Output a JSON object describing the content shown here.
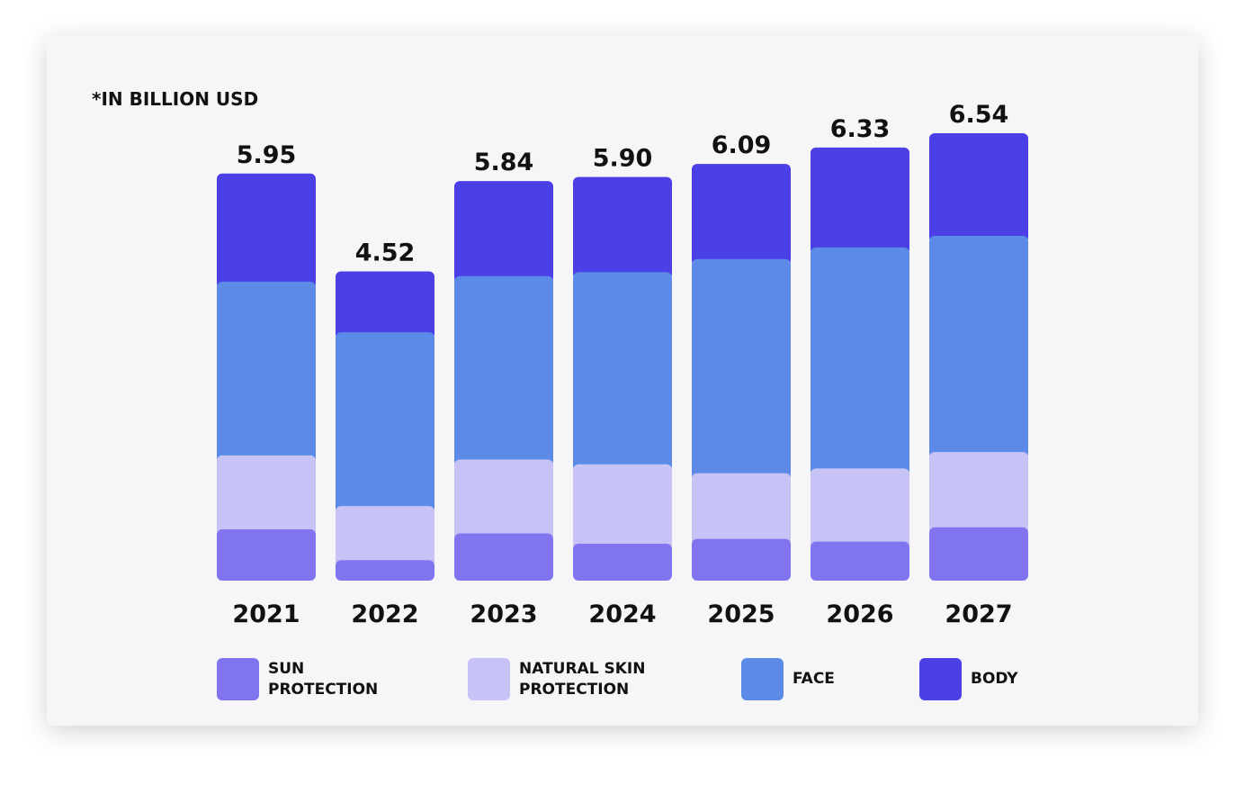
{
  "note": "*IN BILLION USD",
  "chart_data": {
    "type": "bar",
    "stacked": true,
    "categories": [
      "2021",
      "2022",
      "2023",
      "2024",
      "2025",
      "2026",
      "2027"
    ],
    "totals": [
      "5.95",
      "4.52",
      "5.84",
      "5.90",
      "6.09",
      "6.33",
      "6.54"
    ],
    "series": [
      {
        "name": "SUN\nPROTECTION",
        "color": "#8075ee",
        "values": [
          0.75,
          0.3,
          0.69,
          0.54,
          0.61,
          0.57,
          0.78
        ]
      },
      {
        "name": "NATURAL SKIN\nPROTECTION",
        "color": "#c8c3f7",
        "values": [
          1.08,
          0.79,
          1.08,
          1.16,
          0.96,
          1.07,
          1.1
        ]
      },
      {
        "name": "FACE",
        "color": "#5b8be6",
        "values": [
          2.54,
          2.54,
          2.68,
          2.81,
          3.13,
          3.23,
          3.16
        ]
      },
      {
        "name": "BODY",
        "color": "#4b3fe6",
        "values": [
          1.58,
          0.89,
          1.39,
          1.39,
          1.39,
          1.46,
          1.5
        ]
      }
    ],
    "ylabel": "",
    "grid": false,
    "legend_placement": "bottom"
  }
}
